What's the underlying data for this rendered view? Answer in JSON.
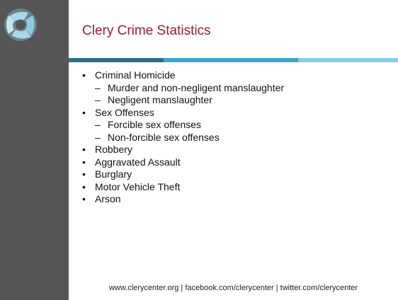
{
  "header": {
    "title": "Clery Crime Statistics"
  },
  "list": [
    {
      "text": "Criminal Homicide",
      "sub": [
        "Murder and non-negligent manslaughter",
        "Negligent manslaughter"
      ]
    },
    {
      "text": "Sex Offenses",
      "sub": [
        "Forcible sex offenses",
        "Non-forcible sex offenses"
      ]
    },
    {
      "text": "Robbery"
    },
    {
      "text": "Aggravated Assault"
    },
    {
      "text": "Burglary"
    },
    {
      "text": "Motor Vehicle Theft"
    },
    {
      "text": "Arson"
    }
  ],
  "footer": {
    "text": "www.clerycenter.org | facebook.com/clerycenter | twitter.com/clerycenter"
  }
}
